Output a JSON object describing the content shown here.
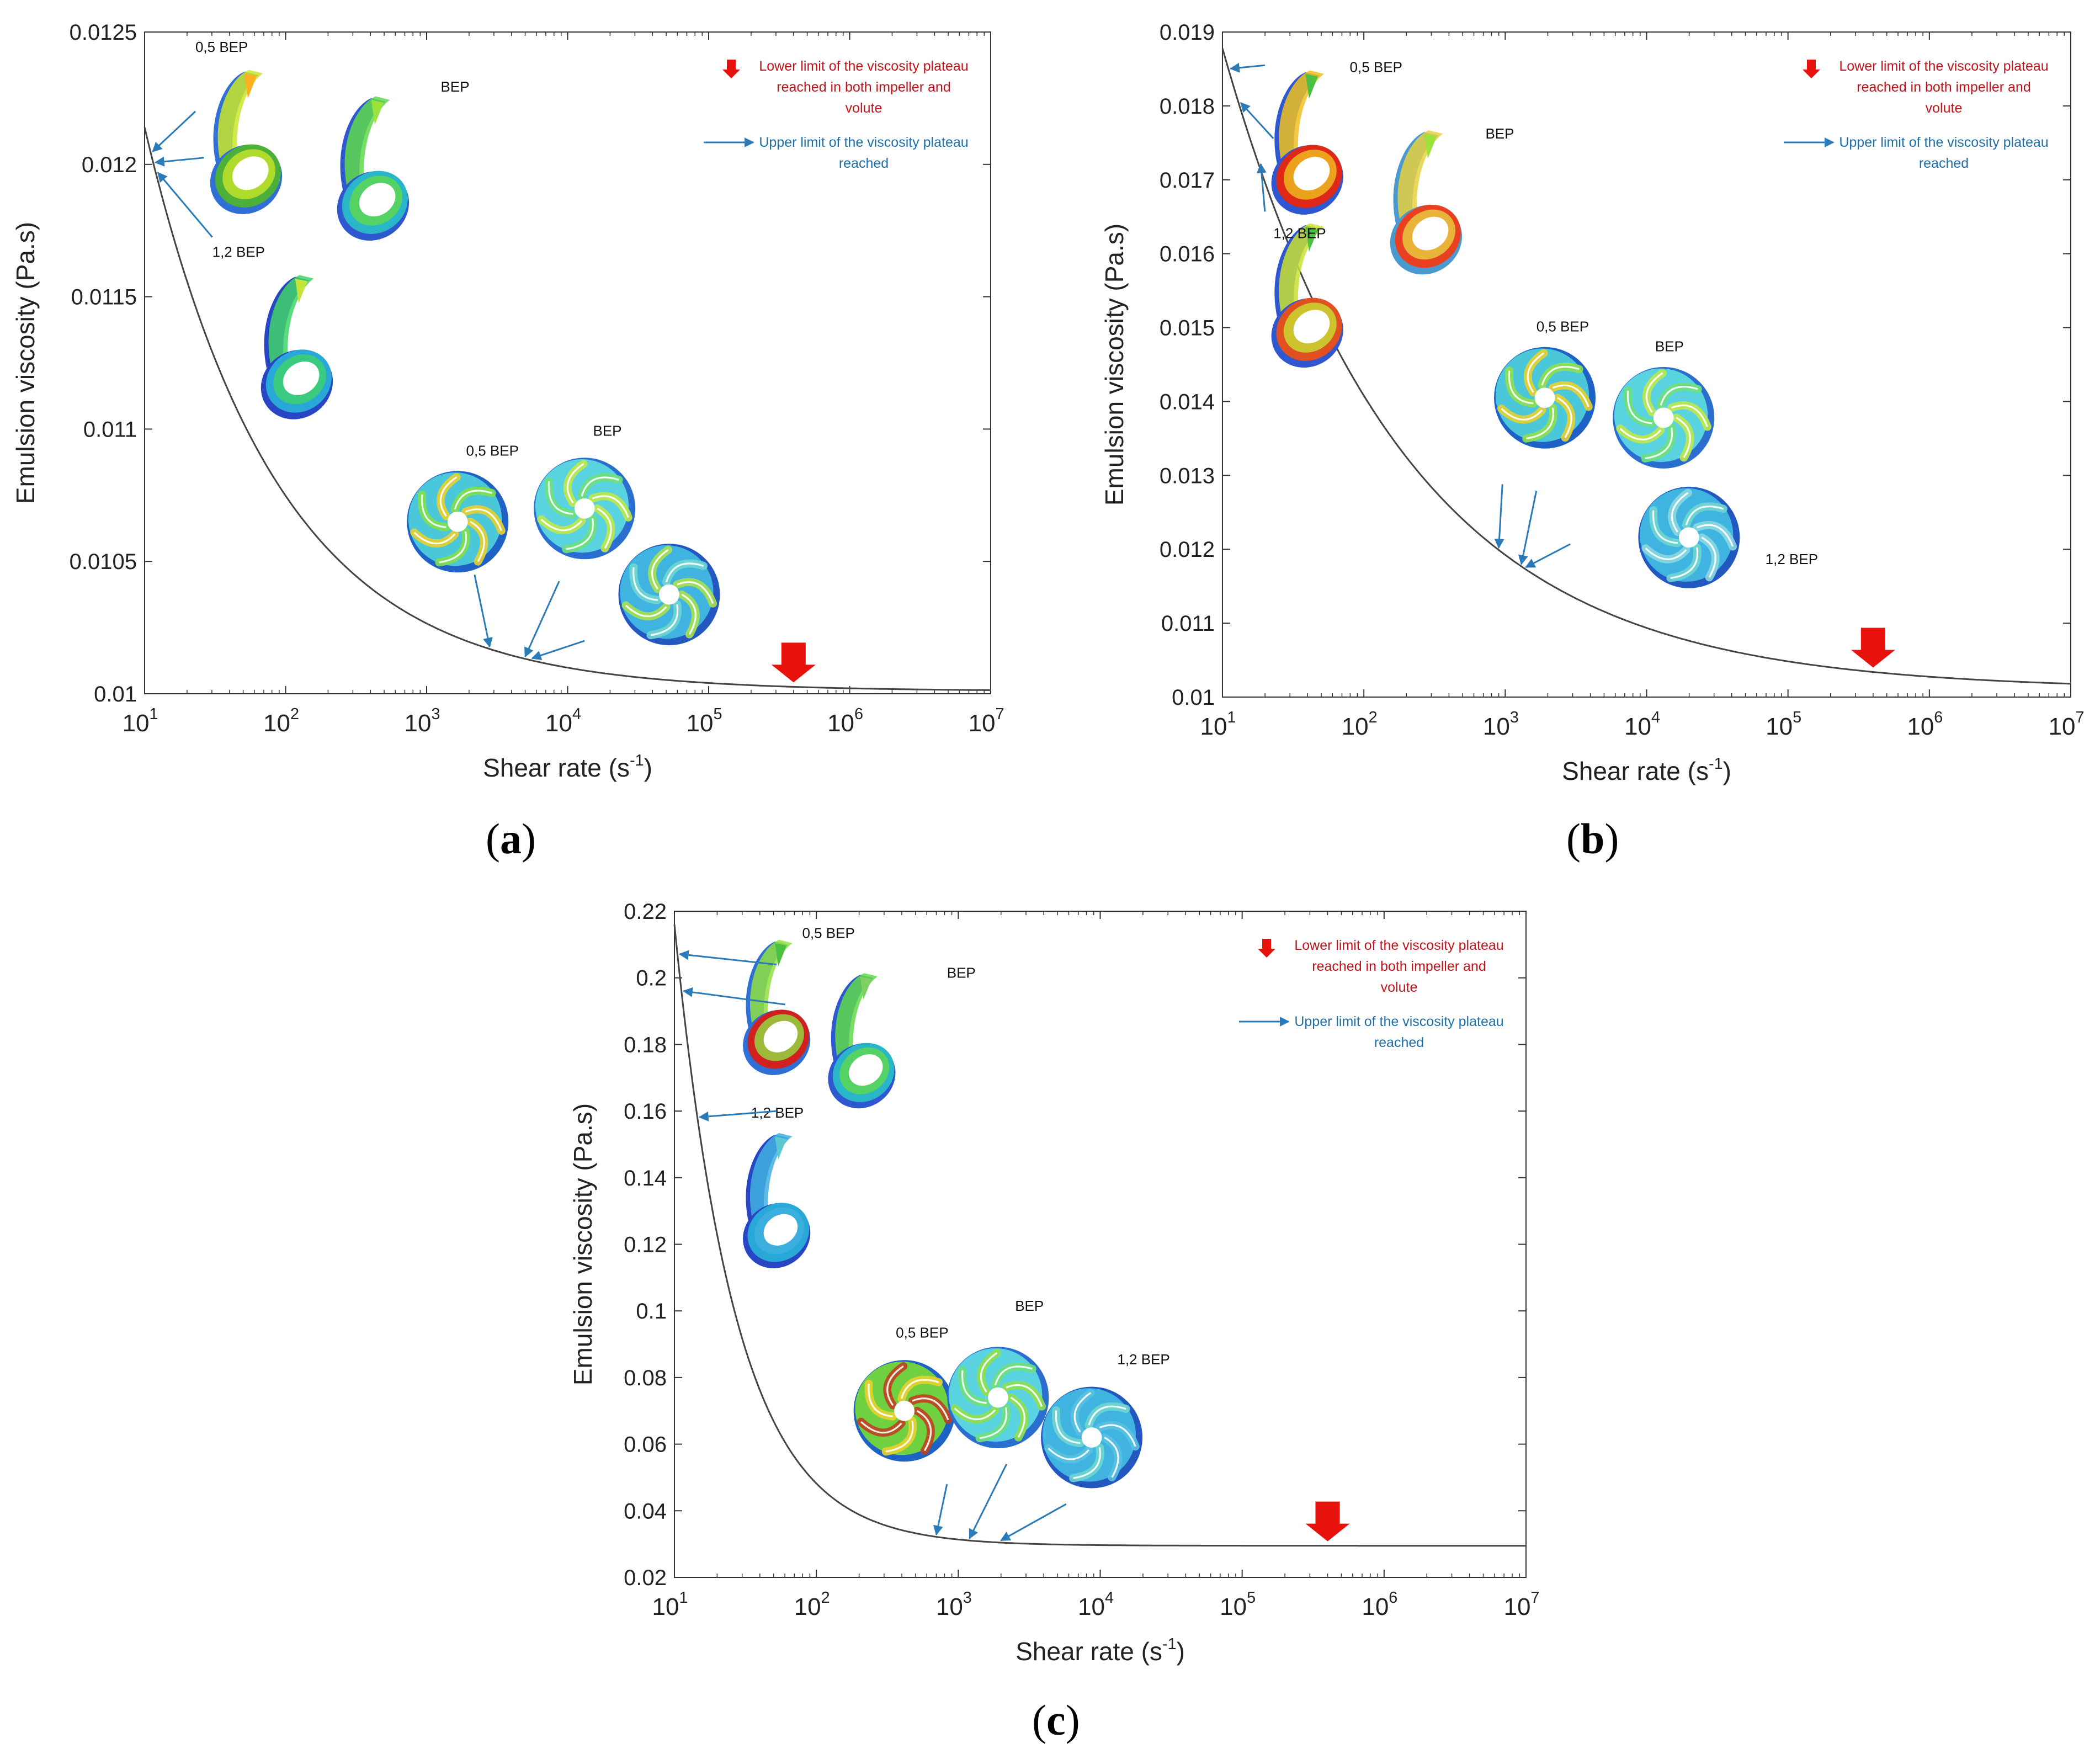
{
  "figure": {
    "panel_labels": [
      {
        "open": "(",
        "letter": "a",
        "close": ")"
      },
      {
        "open": "(",
        "letter": "b",
        "close": ")"
      },
      {
        "open": "(",
        "letter": "c",
        "close": ")"
      }
    ]
  },
  "colors": {
    "curve": "#444444",
    "axis": "#333333",
    "red": "#e8120c",
    "blue": "#2a7bb8",
    "legend_red_text": "#c0141a",
    "legend_blue_text": "#1e6fa8"
  },
  "chart_data": [
    {
      "type": "line",
      "id": "a",
      "title": "",
      "xlabel": "Shear rate (s",
      "xlabel_sup": "-1",
      "xlabel_close": ")",
      "ylabel": "Emulsion viscosity (Pa.s)",
      "xscale": "log",
      "xlim": [
        10,
        10000000
      ],
      "ylim": [
        0.01,
        0.0125
      ],
      "x_tick_bases": [
        "10",
        "10",
        "10",
        "10",
        "10",
        "10",
        "10"
      ],
      "x_tick_exponents": [
        "1",
        "2",
        "3",
        "4",
        "5",
        "6",
        "7"
      ],
      "x_tick_values": [
        10,
        100,
        1000,
        10000,
        100000,
        1000000,
        10000000
      ],
      "y_ticks": [
        0.01,
        0.0105,
        0.011,
        0.0115,
        0.012,
        0.0125
      ],
      "y_tick_labels": [
        "0.01",
        "0.0105",
        "0.011",
        "0.0115",
        "0.012",
        "0.0125"
      ],
      "series": [
        {
          "name": "Emulsion viscosity",
          "model": {
            "plateau": 0.01001,
            "amplitude": 0.00213,
            "decay_per_decade": 1.06
          }
        }
      ],
      "legend": {
        "position": "top-right",
        "red_text": [
          "Lower limit of the viscosity plateau",
          "reached in both impeller and",
          "volute"
        ],
        "blue_text": [
          "Upper limit of the viscosity plateau",
          "reached"
        ]
      },
      "lower_limit_marker_x": 400000,
      "volute_labels": [
        "0,5 BEP",
        "BEP",
        "1,2 BEP"
      ],
      "impeller_labels": [
        "0,5 BEP",
        "BEP",
        ""
      ],
      "volute_arrow_x": [
        11,
        11.5,
        12
      ],
      "impeller_arrow_x": [
        2800,
        5000,
        5600
      ],
      "inset_colors": {
        "volute": [
          [
            "#c8e629",
            "#4caf3a",
            "#ffb020",
            "#2f6fd6"
          ],
          [
            "#5fd94a",
            "#2ab6c9",
            "#9be23a",
            "#2f58d0"
          ],
          [
            "#3fd36a",
            "#28a8d8",
            "#c3e53a",
            "#2846c4"
          ]
        ],
        "impeller": [
          [
            "#4ac7d8",
            "#7fe04a",
            "#e8d030",
            "#1f62c6"
          ],
          [
            "#5ad3e0",
            "#6ee07a",
            "#bfe84a",
            "#2a6ed0"
          ],
          [
            "#3fb4e0",
            "#6fd6d0",
            "#a8e050",
            "#2358c0"
          ]
        ]
      }
    },
    {
      "type": "line",
      "id": "b",
      "title": "",
      "xlabel": "Shear rate (s",
      "xlabel_sup": "-1",
      "xlabel_close": ")",
      "ylabel": "Emulsion viscosity (Pa.s)",
      "xscale": "log",
      "xlim": [
        10,
        10000000
      ],
      "ylim": [
        0.01,
        0.019
      ],
      "x_tick_bases": [
        "10",
        "10",
        "10",
        "10",
        "10",
        "10",
        "10"
      ],
      "x_tick_exponents": [
        "1",
        "2",
        "3",
        "4",
        "5",
        "6",
        "7"
      ],
      "x_tick_values": [
        10,
        100,
        1000,
        10000,
        100000,
        1000000,
        10000000
      ],
      "y_ticks": [
        0.01,
        0.011,
        0.012,
        0.013,
        0.014,
        0.015,
        0.016,
        0.017,
        0.018,
        0.019
      ],
      "y_tick_labels": [
        "0.01",
        "0.011",
        "0.012",
        "0.013",
        "0.014",
        "0.015",
        "0.016",
        "0.017",
        "0.018",
        "0.019"
      ],
      "series": [
        {
          "name": "Emulsion viscosity",
          "model": {
            "plateau": 0.0101,
            "amplitude": 0.00868,
            "decay_per_decade": 0.78
          }
        }
      ],
      "legend": {
        "position": "top-right",
        "red_text": [
          "Lower limit of the viscosity plateau",
          "reached in both impeller and",
          "volute"
        ],
        "blue_text": [
          "Upper limit of the viscosity plateau",
          "reached"
        ]
      },
      "lower_limit_marker_x": 400000,
      "volute_labels": [
        "0,5 BEP",
        "BEP",
        "1,2 BEP"
      ],
      "impeller_labels": [
        "0,5 BEP",
        "BEP",
        "1,2 BEP"
      ],
      "volute_arrow_x": [
        11,
        13,
        18
      ],
      "impeller_arrow_x": [
        900,
        1300,
        1400
      ],
      "inset_colors": {
        "volute": [
          [
            "#f0c020",
            "#e02818",
            "#4cc040",
            "#2f58d0"
          ],
          [
            "#e8d040",
            "#e84020",
            "#9be23a",
            "#4a9ad0"
          ],
          [
            "#c8e030",
            "#e05020",
            "#50c040",
            "#2f58d0"
          ]
        ],
        "impeller": [
          [
            "#4ac7d8",
            "#8fe04a",
            "#e8d030",
            "#1f62c6"
          ],
          [
            "#5ad3e0",
            "#6ee07a",
            "#bfe84a",
            "#2a6ed0"
          ],
          [
            "#3fb4e0",
            "#6fd6d0",
            "#8ad8e0",
            "#2358c0"
          ]
        ]
      }
    },
    {
      "type": "line",
      "id": "c",
      "title": "",
      "xlabel": "Shear rate (s",
      "xlabel_sup": "-1",
      "xlabel_close": ")",
      "ylabel": "Emulsion viscosity (Pa.s)",
      "xscale": "log",
      "xlim": [
        10,
        10000000
      ],
      "ylim": [
        0.02,
        0.22
      ],
      "x_tick_bases": [
        "10",
        "10",
        "10",
        "10",
        "10",
        "10",
        "10"
      ],
      "x_tick_exponents": [
        "1",
        "2",
        "3",
        "4",
        "5",
        "6",
        "7"
      ],
      "x_tick_values": [
        10,
        100,
        1000,
        10000,
        100000,
        1000000,
        10000000
      ],
      "y_ticks": [
        0.02,
        0.04,
        0.06,
        0.08,
        0.1,
        0.12,
        0.14,
        0.16,
        0.18,
        0.2,
        0.22
      ],
      "y_tick_labels": [
        "0.02",
        "0.04",
        "0.06",
        "0.08",
        "0.1",
        "0.12",
        "0.14",
        "0.16",
        "0.18",
        "0.2",
        "0.22"
      ],
      "series": [
        {
          "name": "Emulsion viscosity",
          "model": {
            "plateau": 0.0295,
            "amplitude": 0.1865,
            "decay_per_decade": 2.3
          }
        }
      ],
      "legend": {
        "position": "top-right",
        "red_text": [
          "Lower limit of the viscosity plateau",
          "reached in both impeller and",
          "volute"
        ],
        "blue_text": [
          "Upper limit of the viscosity plateau",
          "reached"
        ]
      },
      "lower_limit_marker_x": 400000,
      "volute_labels": [
        "0,5 BEP",
        "BEP",
        "1,2 BEP"
      ],
      "impeller_labels": [
        "0,5 BEP",
        "BEP",
        "1,2 BEP"
      ],
      "volute_arrow_x": [
        10.5,
        11.2,
        14.5
      ],
      "impeller_arrow_x": [
        700,
        1200,
        2000
      ],
      "inset_colors": {
        "volute": [
          [
            "#8fe040",
            "#d02020",
            "#4ac040",
            "#2f6fd6"
          ],
          [
            "#5fd94a",
            "#2ab6c9",
            "#7fd060",
            "#2f58d0"
          ],
          [
            "#3fb0e0",
            "#28a8d8",
            "#5ec8d0",
            "#2846c4"
          ]
        ],
        "impeller": [
          [
            "#6fd040",
            "#e8d030",
            "#c04020",
            "#1f62c6"
          ],
          [
            "#5ad3e0",
            "#6ee07a",
            "#8fe04a",
            "#2a6ed0"
          ],
          [
            "#3fb4e0",
            "#6fd6d0",
            "#5ac0e0",
            "#2358c0"
          ]
        ]
      }
    }
  ]
}
